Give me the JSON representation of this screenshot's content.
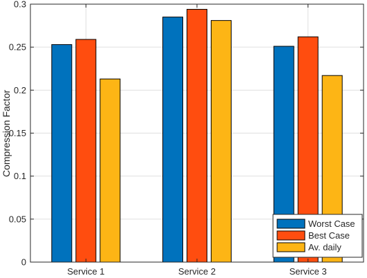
{
  "chart_data": {
    "type": "bar",
    "title": "",
    "xlabel": "",
    "ylabel": "Compression Factor",
    "categories": [
      "Service 1",
      "Service 2",
      "Service 3"
    ],
    "series": [
      {
        "name": "Worst Case",
        "color": "#0072BD",
        "values": [
          0.253,
          0.285,
          0.251
        ]
      },
      {
        "name": "Best Case",
        "color": "#FF4D0F",
        "values": [
          0.259,
          0.294,
          0.262
        ]
      },
      {
        "name": "Av. daily",
        "color": "#FDB515",
        "values": [
          0.213,
          0.281,
          0.217
        ]
      }
    ],
    "ylim": [
      0,
      0.3
    ],
    "yticks": [
      "0",
      "0.05",
      "0.1",
      "0.15",
      "0.2",
      "0.25",
      "0.3"
    ],
    "grid": true,
    "legend_position": "bottom-right"
  }
}
